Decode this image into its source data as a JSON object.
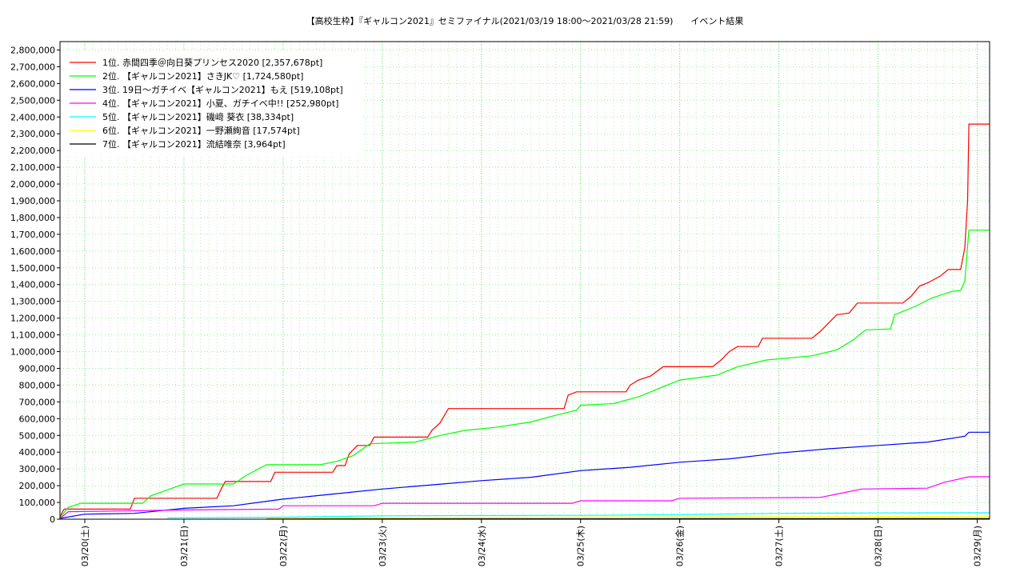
{
  "chart_data": {
    "type": "line",
    "title": "【高校生枠】『ギャルコン2021』セミファイナル(2021/03/19 18:00～2021/03/28 21:59)　　イベント結果",
    "xlabel": "",
    "ylabel": "",
    "ylim": [
      0,
      2850000
    ],
    "yticks": [
      0,
      100000,
      200000,
      300000,
      400000,
      500000,
      600000,
      700000,
      800000,
      900000,
      1000000,
      1100000,
      1200000,
      1300000,
      1400000,
      1500000,
      1600000,
      1700000,
      1800000,
      1900000,
      2000000,
      2100000,
      2200000,
      2300000,
      2400000,
      2500000,
      2600000,
      2700000,
      2800000
    ],
    "ytick_labels": [
      "0",
      "100,000",
      "200,000",
      "300,000",
      "400,000",
      "500,000",
      "600,000",
      "700,000",
      "800,000",
      "900,000",
      "1,000,000",
      "1,100,000",
      "1,200,000",
      "1,300,000",
      "1,400,000",
      "1,500,000",
      "1,600,000",
      "1,700,000",
      "1,800,000",
      "1,900,000",
      "2,000,000",
      "2,100,000",
      "2,200,000",
      "2,300,000",
      "2,400,000",
      "2,500,000",
      "2,600,000",
      "2,700,000",
      "2,800,000"
    ],
    "xlim": [
      "2021-03-19 18:00",
      "2021-03-29 03:00"
    ],
    "xticks": [
      "2021-03-20 00:00",
      "2021-03-21 00:00",
      "2021-03-22 00:00",
      "2021-03-23 00:00",
      "2021-03-24 00:00",
      "2021-03-25 00:00",
      "2021-03-26 00:00",
      "2021-03-27 00:00",
      "2021-03-28 00:00",
      "2021-03-29 00:00"
    ],
    "xtick_labels": [
      "03/20(土)",
      "03/21(日)",
      "03/22(月)",
      "03/23(火)",
      "03/24(水)",
      "03/25(木)",
      "03/26(金)",
      "03/27(土)",
      "03/28(日)",
      "03/29(月)"
    ],
    "grid": true,
    "legend_position": "top-left",
    "series": [
      {
        "name": "1位. 赤間四季＠向日葵プリンセス2020 [2,357,678pt]",
        "color": "#ff0000",
        "points": [
          [
            "2021-03-19 18:00",
            10000
          ],
          [
            "2021-03-19 18:30",
            40000
          ],
          [
            "2021-03-19 19:00",
            60000
          ],
          [
            "2021-03-20 11:00",
            60000
          ],
          [
            "2021-03-20 12:00",
            125000
          ],
          [
            "2021-03-21 08:00",
            125000
          ],
          [
            "2021-03-21 09:00",
            180000
          ],
          [
            "2021-03-21 10:00",
            225000
          ],
          [
            "2021-03-21 21:00",
            225000
          ],
          [
            "2021-03-21 22:00",
            280000
          ],
          [
            "2021-03-22 12:00",
            280000
          ],
          [
            "2021-03-22 13:00",
            320000
          ],
          [
            "2021-03-22 15:00",
            320000
          ],
          [
            "2021-03-22 16:00",
            390000
          ],
          [
            "2021-03-22 18:00",
            440000
          ],
          [
            "2021-03-22 21:00",
            440000
          ],
          [
            "2021-03-22 22:00",
            490000
          ],
          [
            "2021-03-23 11:00",
            490000
          ],
          [
            "2021-03-23 12:00",
            530000
          ],
          [
            "2021-03-23 14:00",
            575000
          ],
          [
            "2021-03-23 16:00",
            660000
          ],
          [
            "2021-03-24 20:00",
            660000
          ],
          [
            "2021-03-24 21:00",
            740000
          ],
          [
            "2021-03-24 23:00",
            760000
          ],
          [
            "2021-03-25 11:00",
            760000
          ],
          [
            "2021-03-25 12:00",
            800000
          ],
          [
            "2021-03-25 14:00",
            830000
          ],
          [
            "2021-03-25 17:00",
            855000
          ],
          [
            "2021-03-25 20:00",
            910000
          ],
          [
            "2021-03-26 08:00",
            910000
          ],
          [
            "2021-03-26 10:00",
            950000
          ],
          [
            "2021-03-26 12:00",
            1000000
          ],
          [
            "2021-03-26 14:00",
            1030000
          ],
          [
            "2021-03-26 19:00",
            1030000
          ],
          [
            "2021-03-26 20:00",
            1080000
          ],
          [
            "2021-03-27 08:00",
            1080000
          ],
          [
            "2021-03-27 10:00",
            1120000
          ],
          [
            "2021-03-27 12:00",
            1170000
          ],
          [
            "2021-03-27 14:00",
            1220000
          ],
          [
            "2021-03-27 17:00",
            1230000
          ],
          [
            "2021-03-27 19:00",
            1290000
          ],
          [
            "2021-03-28 06:00",
            1290000
          ],
          [
            "2021-03-28 08:00",
            1330000
          ],
          [
            "2021-03-28 10:00",
            1390000
          ],
          [
            "2021-03-28 12:00",
            1410000
          ],
          [
            "2021-03-28 15:00",
            1450000
          ],
          [
            "2021-03-28 17:00",
            1490000
          ],
          [
            "2021-03-28 20:00",
            1490000
          ],
          [
            "2021-03-28 21:00",
            1620000
          ],
          [
            "2021-03-28 21:40",
            1900000
          ],
          [
            "2021-03-28 21:59",
            2357678
          ],
          [
            "2021-03-29 03:00",
            2357678
          ]
        ]
      },
      {
        "name": "2位. 【ギャルコン2021】さきJK♡ [1,724,580pt]",
        "color": "#00ff00",
        "points": [
          [
            "2021-03-19 18:00",
            10000
          ],
          [
            "2021-03-19 20:00",
            70000
          ],
          [
            "2021-03-19 23:00",
            95000
          ],
          [
            "2021-03-20 14:00",
            95000
          ],
          [
            "2021-03-20 16:00",
            140000
          ],
          [
            "2021-03-20 20:00",
            175000
          ],
          [
            "2021-03-21 00:00",
            210000
          ],
          [
            "2021-03-21 12:00",
            210000
          ],
          [
            "2021-03-21 15:00",
            260000
          ],
          [
            "2021-03-21 18:00",
            300000
          ],
          [
            "2021-03-21 20:00",
            325000
          ],
          [
            "2021-03-22 09:00",
            325000
          ],
          [
            "2021-03-22 13:00",
            345000
          ],
          [
            "2021-03-22 17:00",
            380000
          ],
          [
            "2021-03-22 21:00",
            450000
          ],
          [
            "2021-03-23 08:00",
            460000
          ],
          [
            "2021-03-23 14:00",
            500000
          ],
          [
            "2021-03-23 20:00",
            530000
          ],
          [
            "2021-03-24 04:00",
            550000
          ],
          [
            "2021-03-24 12:00",
            580000
          ],
          [
            "2021-03-24 18:00",
            620000
          ],
          [
            "2021-03-24 23:00",
            650000
          ],
          [
            "2021-03-25 00:00",
            680000
          ],
          [
            "2021-03-25 08:00",
            690000
          ],
          [
            "2021-03-25 14:00",
            730000
          ],
          [
            "2021-03-25 19:00",
            780000
          ],
          [
            "2021-03-26 00:00",
            830000
          ],
          [
            "2021-03-26 09:00",
            860000
          ],
          [
            "2021-03-26 14:00",
            910000
          ],
          [
            "2021-03-26 21:00",
            950000
          ],
          [
            "2021-03-27 08:00",
            975000
          ],
          [
            "2021-03-27 14:00",
            1010000
          ],
          [
            "2021-03-27 18:00",
            1070000
          ],
          [
            "2021-03-27 21:00",
            1130000
          ],
          [
            "2021-03-28 03:00",
            1135000
          ],
          [
            "2021-03-28 04:00",
            1220000
          ],
          [
            "2021-03-28 09:00",
            1270000
          ],
          [
            "2021-03-28 13:00",
            1320000
          ],
          [
            "2021-03-28 18:00",
            1360000
          ],
          [
            "2021-03-28 20:00",
            1365000
          ],
          [
            "2021-03-28 21:00",
            1420000
          ],
          [
            "2021-03-28 21:59",
            1724580
          ],
          [
            "2021-03-29 03:00",
            1724580
          ]
        ]
      },
      {
        "name": "3位. 19日～ガチイベ【ギャルコン2021】もえ [519,108pt]",
        "color": "#0000ff",
        "points": [
          [
            "2021-03-19 18:00",
            5000
          ],
          [
            "2021-03-20 00:00",
            30000
          ],
          [
            "2021-03-20 12:00",
            35000
          ],
          [
            "2021-03-21 00:00",
            65000
          ],
          [
            "2021-03-21 12:00",
            80000
          ],
          [
            "2021-03-22 00:00",
            120000
          ],
          [
            "2021-03-22 12:00",
            150000
          ],
          [
            "2021-03-23 00:00",
            180000
          ],
          [
            "2021-03-23 12:00",
            205000
          ],
          [
            "2021-03-24 00:00",
            230000
          ],
          [
            "2021-03-24 12:00",
            250000
          ],
          [
            "2021-03-25 00:00",
            290000
          ],
          [
            "2021-03-25 12:00",
            310000
          ],
          [
            "2021-03-26 00:00",
            340000
          ],
          [
            "2021-03-26 12:00",
            360000
          ],
          [
            "2021-03-27 00:00",
            395000
          ],
          [
            "2021-03-27 12:00",
            420000
          ],
          [
            "2021-03-28 00:00",
            440000
          ],
          [
            "2021-03-28 12:00",
            460000
          ],
          [
            "2021-03-28 21:00",
            495000
          ],
          [
            "2021-03-28 21:59",
            519108
          ],
          [
            "2021-03-29 03:00",
            519108
          ]
        ]
      },
      {
        "name": "4位. 【ギャルコン2021】小夏、ガチイベ中!! [252,980pt]",
        "color": "#ff00ff",
        "points": [
          [
            "2021-03-19 18:00",
            5000
          ],
          [
            "2021-03-19 20:00",
            45000
          ],
          [
            "2021-03-21 00:00",
            55000
          ],
          [
            "2021-03-21 23:00",
            60000
          ],
          [
            "2021-03-22 00:00",
            80000
          ],
          [
            "2021-03-22 22:00",
            80000
          ],
          [
            "2021-03-23 00:00",
            95000
          ],
          [
            "2021-03-24 22:00",
            95000
          ],
          [
            "2021-03-25 00:00",
            110000
          ],
          [
            "2021-03-25 22:00",
            110000
          ],
          [
            "2021-03-26 00:00",
            125000
          ],
          [
            "2021-03-27 10:00",
            130000
          ],
          [
            "2021-03-27 14:00",
            150000
          ],
          [
            "2021-03-27 20:00",
            180000
          ],
          [
            "2021-03-28 12:00",
            185000
          ],
          [
            "2021-03-28 16:00",
            220000
          ],
          [
            "2021-03-28 21:59",
            252980
          ],
          [
            "2021-03-29 03:00",
            252980
          ]
        ]
      },
      {
        "name": "5位. 【ギャルコン2021】磯﨑 葵衣 [38,334pt]",
        "color": "#00ffff",
        "points": [
          [
            "2021-03-20 20:00",
            8000
          ],
          [
            "2021-03-22 00:00",
            12000
          ],
          [
            "2021-03-23 00:00",
            20000
          ],
          [
            "2021-03-24 00:00",
            22000
          ],
          [
            "2021-03-25 00:00",
            23000
          ],
          [
            "2021-03-26 00:00",
            27000
          ],
          [
            "2021-03-27 00:00",
            35000
          ],
          [
            "2021-03-28 00:00",
            37000
          ],
          [
            "2021-03-28 21:59",
            38334
          ],
          [
            "2021-03-29 03:00",
            38334
          ]
        ]
      },
      {
        "name": "6位. 【ギャルコン2021】一野瀬絢音 [17,574pt]",
        "color": "#ffff00",
        "points": [
          [
            "2021-03-21 20:00",
            3000
          ],
          [
            "2021-03-23 00:00",
            8000
          ],
          [
            "2021-03-25 00:00",
            12000
          ],
          [
            "2021-03-27 00:00",
            15000
          ],
          [
            "2021-03-28 21:59",
            17574
          ],
          [
            "2021-03-29 03:00",
            17574
          ]
        ]
      },
      {
        "name": "7位. 【ギャルコン2021】流結唯奈 [3,964pt]",
        "color": "#000000",
        "points": [
          [
            "2021-03-21 20:00",
            1000
          ],
          [
            "2021-03-24 00:00",
            2500
          ],
          [
            "2021-03-28 21:59",
            3964
          ],
          [
            "2021-03-29 03:00",
            3964
          ]
        ]
      }
    ]
  }
}
